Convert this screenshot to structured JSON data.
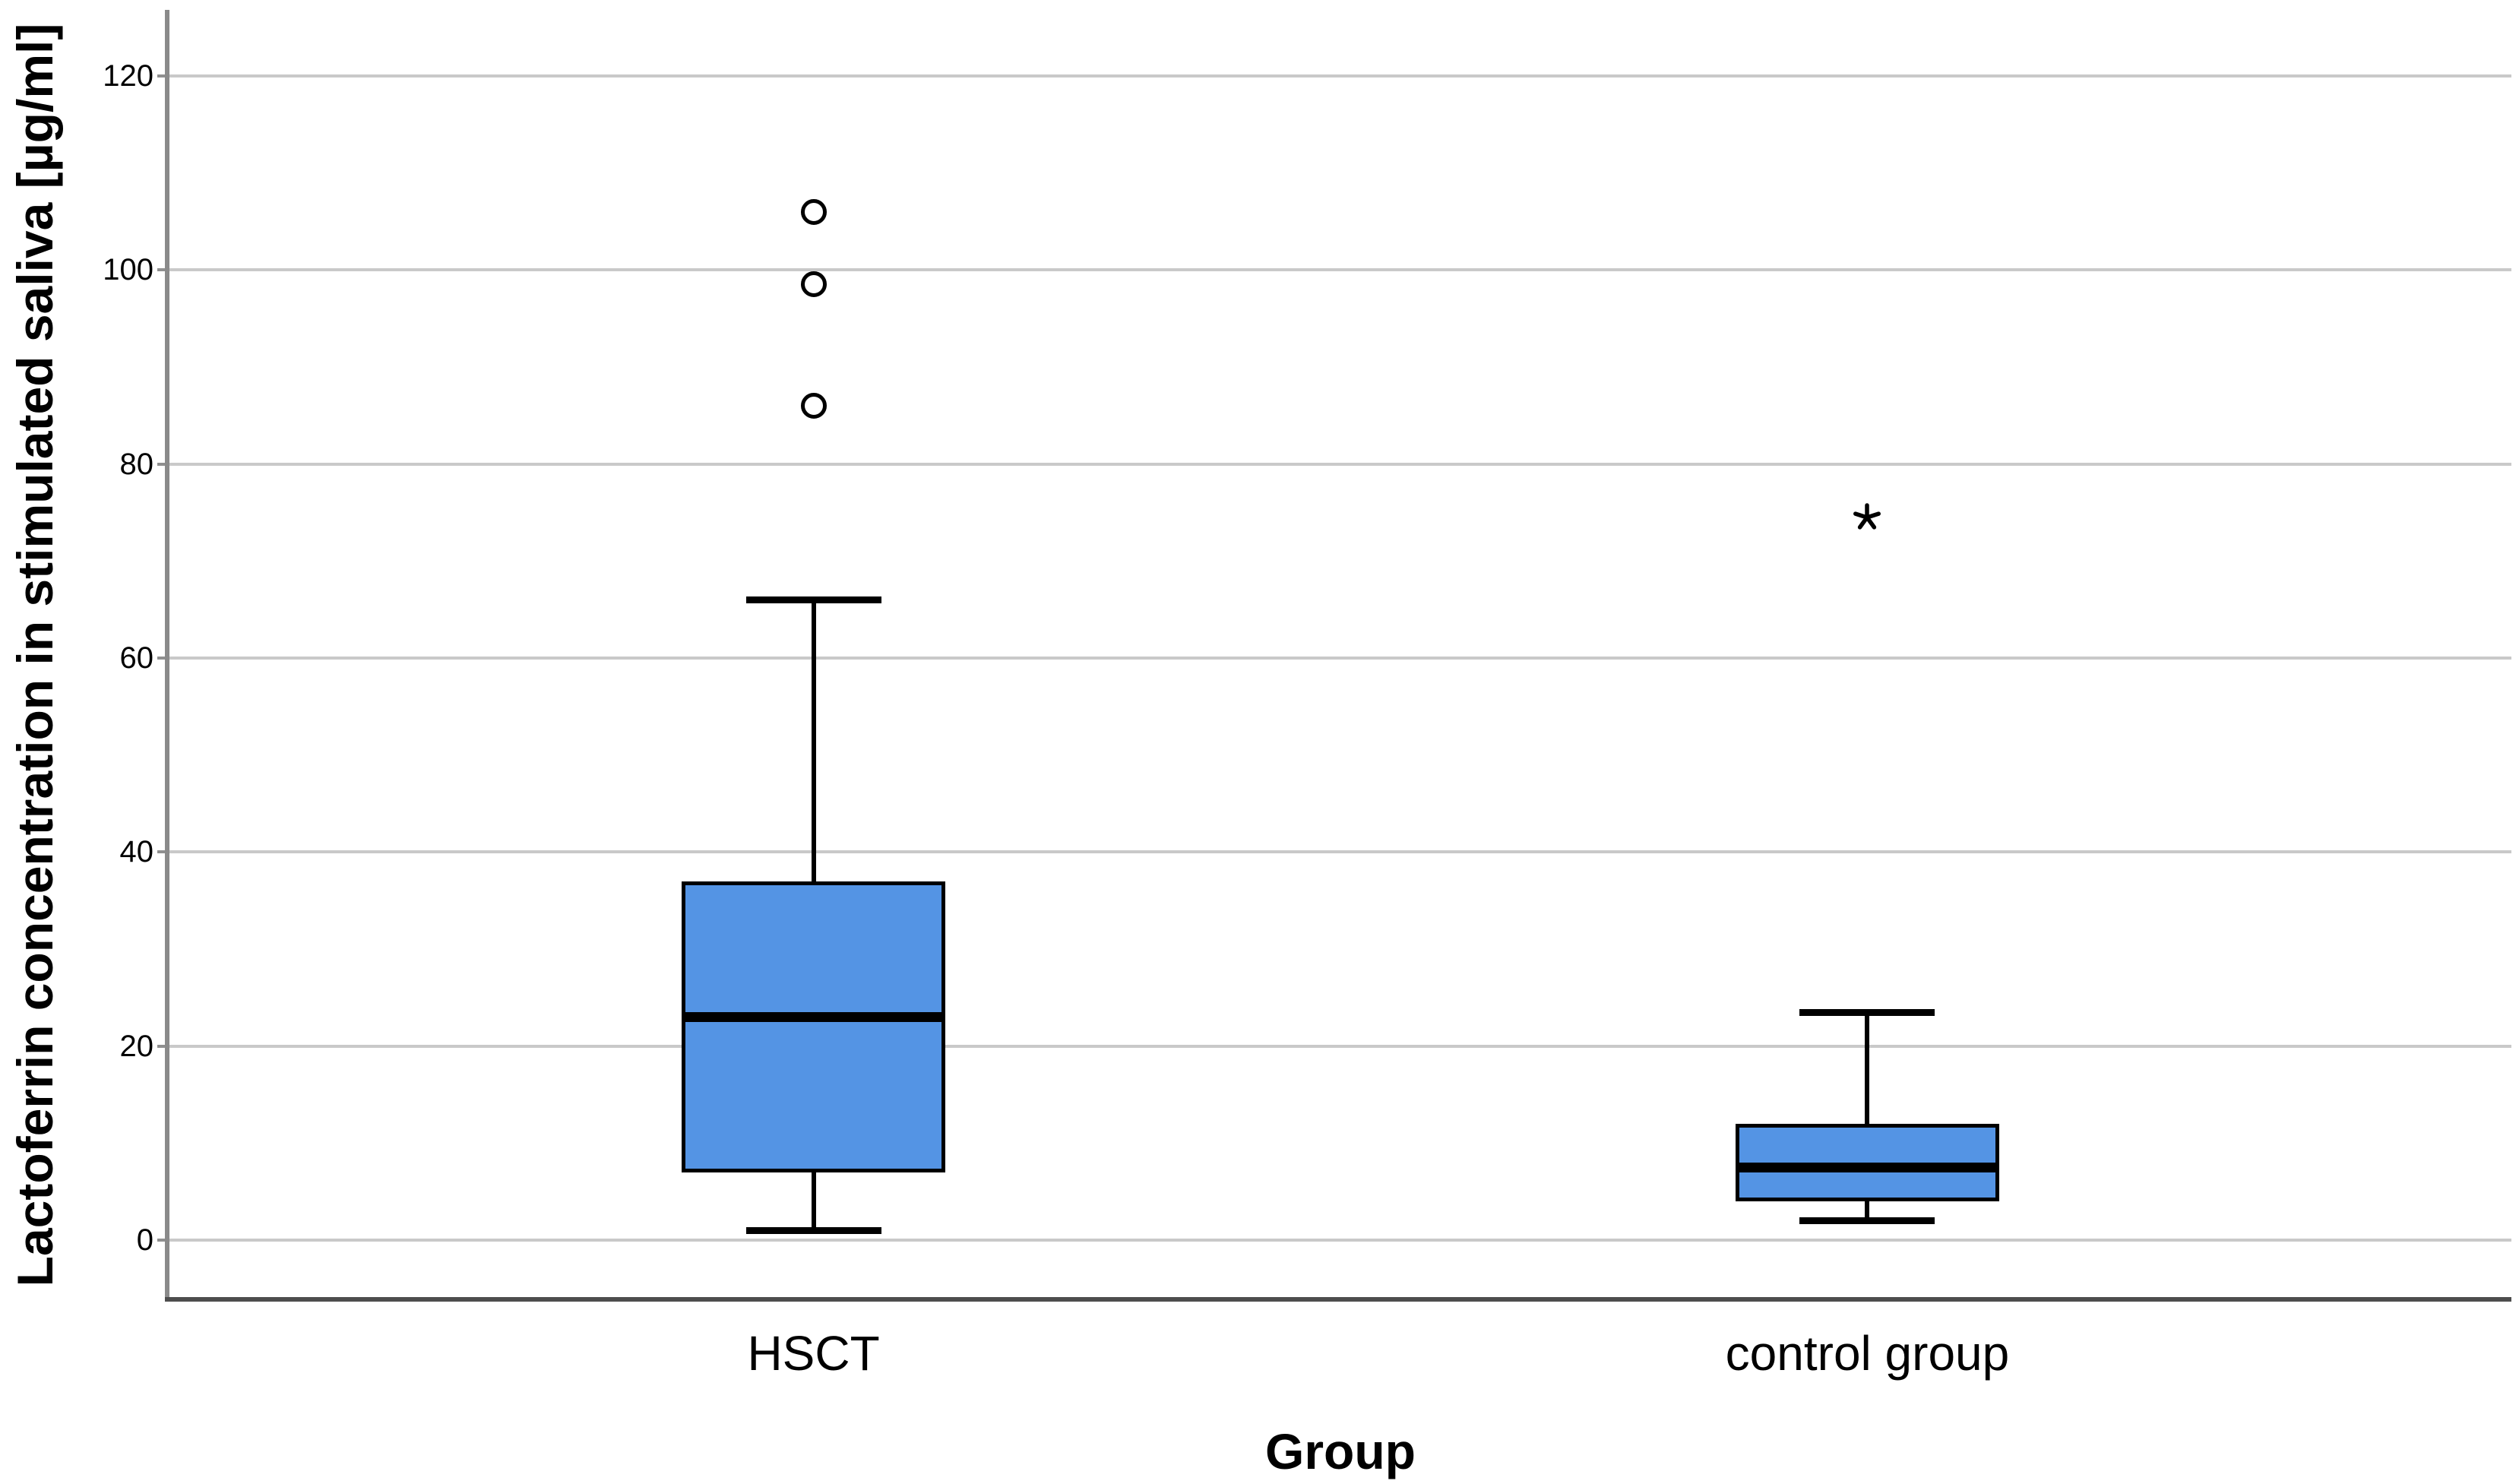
{
  "chart_data": {
    "type": "boxplot",
    "title": "",
    "xlabel": "Group",
    "ylabel": "Lactoferrin concentration in stimulated saliva [µg/ml]",
    "yticks": [
      0,
      20,
      40,
      60,
      80,
      100,
      120
    ],
    "ylim": [
      -6,
      127
    ],
    "grid": "horizontal",
    "box_fill_color": "#5494E4",
    "box_border_color": "#000000",
    "groups": [
      {
        "label": "HSCT",
        "whisker_low": 1,
        "q1": 7,
        "median": 23,
        "q3": 37,
        "whisker_high": 66,
        "outliers": [
          86,
          98.5,
          106
        ],
        "extreme_outliers": []
      },
      {
        "label": "control group",
        "whisker_low": 2,
        "q1": 4,
        "median": 7.5,
        "q3": 12,
        "whisker_high": 23.5,
        "outliers": [],
        "extreme_outliers": [
          74.5
        ]
      }
    ]
  }
}
